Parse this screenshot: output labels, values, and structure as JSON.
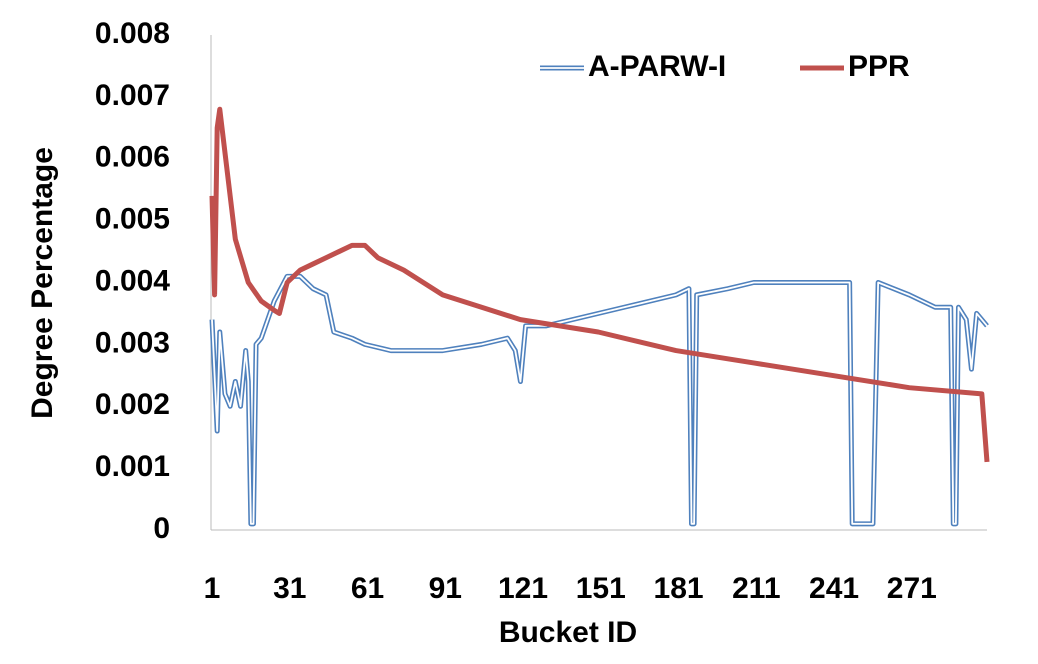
{
  "chart_data": {
    "type": "line",
    "x_label": "Bucket ID",
    "y_label": "Degree Percentage",
    "xlim": [
      1,
      300
    ],
    "xticks": [
      1,
      31,
      61,
      91,
      121,
      151,
      181,
      211,
      241,
      271
    ],
    "ylim": [
      0,
      0.008
    ],
    "yticks": [
      0,
      0.001,
      0.002,
      0.003,
      0.004,
      0.005,
      0.006,
      0.007,
      0.008
    ],
    "legend": "top-right",
    "grid": false,
    "series": [
      {
        "name": "A-PARW-I",
        "color": "#4f81bd",
        "style": "double",
        "x": [
          1,
          2,
          3,
          4,
          6,
          8,
          10,
          12,
          14,
          15,
          16,
          17,
          18,
          20,
          25,
          30,
          35,
          40,
          45,
          48,
          55,
          60,
          70,
          90,
          105,
          115,
          118,
          120,
          122,
          130,
          140,
          160,
          180,
          185,
          186,
          187,
          188,
          200,
          210,
          220,
          230,
          247,
          248,
          256,
          258,
          270,
          280,
          286,
          287,
          288,
          289,
          292,
          294,
          296,
          300
        ],
        "values": [
          0.0034,
          0.0025,
          0.0016,
          0.0032,
          0.0022,
          0.002,
          0.0024,
          0.002,
          0.0029,
          0.0024,
          0.0001,
          0.0001,
          0.003,
          0.0031,
          0.0037,
          0.0041,
          0.0041,
          0.0039,
          0.0038,
          0.0032,
          0.0031,
          0.003,
          0.0029,
          0.0029,
          0.003,
          0.0031,
          0.0029,
          0.0024,
          0.0033,
          0.0033,
          0.0034,
          0.0036,
          0.0038,
          0.0039,
          0.0001,
          0.0001,
          0.0038,
          0.0039,
          0.004,
          0.004,
          0.004,
          0.004,
          0.0001,
          0.0001,
          0.004,
          0.0038,
          0.0036,
          0.0036,
          0.0001,
          0.0001,
          0.0036,
          0.0034,
          0.0026,
          0.0035,
          0.0033
        ]
      },
      {
        "name": "PPR",
        "color": "#c0504d",
        "style": "thick",
        "x": [
          1,
          2,
          3,
          4,
          6,
          10,
          15,
          20,
          25,
          27,
          30,
          35,
          40,
          45,
          50,
          55,
          60,
          65,
          75,
          90,
          105,
          120,
          150,
          180,
          210,
          240,
          270,
          298,
          300
        ],
        "values": [
          0.0054,
          0.0038,
          0.0065,
          0.0068,
          0.0061,
          0.0047,
          0.004,
          0.0037,
          0.00355,
          0.0035,
          0.004,
          0.0042,
          0.0043,
          0.0044,
          0.0045,
          0.0046,
          0.0046,
          0.0044,
          0.0042,
          0.0038,
          0.0036,
          0.0034,
          0.0032,
          0.0029,
          0.0027,
          0.0025,
          0.0023,
          0.0022,
          0.0011
        ]
      }
    ]
  }
}
